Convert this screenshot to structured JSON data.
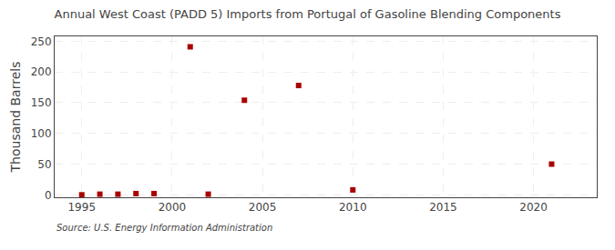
{
  "chart_data": {
    "type": "scatter",
    "title": "Annual West Coast (PADD 5) Imports from Portugal of Gasoline Blending Components",
    "ylabel": "Thousand Barrels",
    "annotations": [
      "Source: U.S. Energy Information Administration"
    ],
    "x": [
      1995,
      1996,
      1997,
      1998,
      1999,
      2001,
      2002,
      2004,
      2007,
      2010,
      2021
    ],
    "values": [
      0,
      1,
      1,
      2,
      2,
      241,
      1,
      154,
      178,
      8,
      50
    ],
    "color": "#aa0000",
    "marker": "square",
    "xlim": [
      1993.5,
      2023.5
    ],
    "ylim": [
      -4,
      258
    ],
    "xticks": [
      1995,
      2000,
      2005,
      2010,
      2015,
      2020
    ],
    "yticks": [
      0,
      50,
      100,
      150,
      200,
      250
    ],
    "grid": true
  }
}
